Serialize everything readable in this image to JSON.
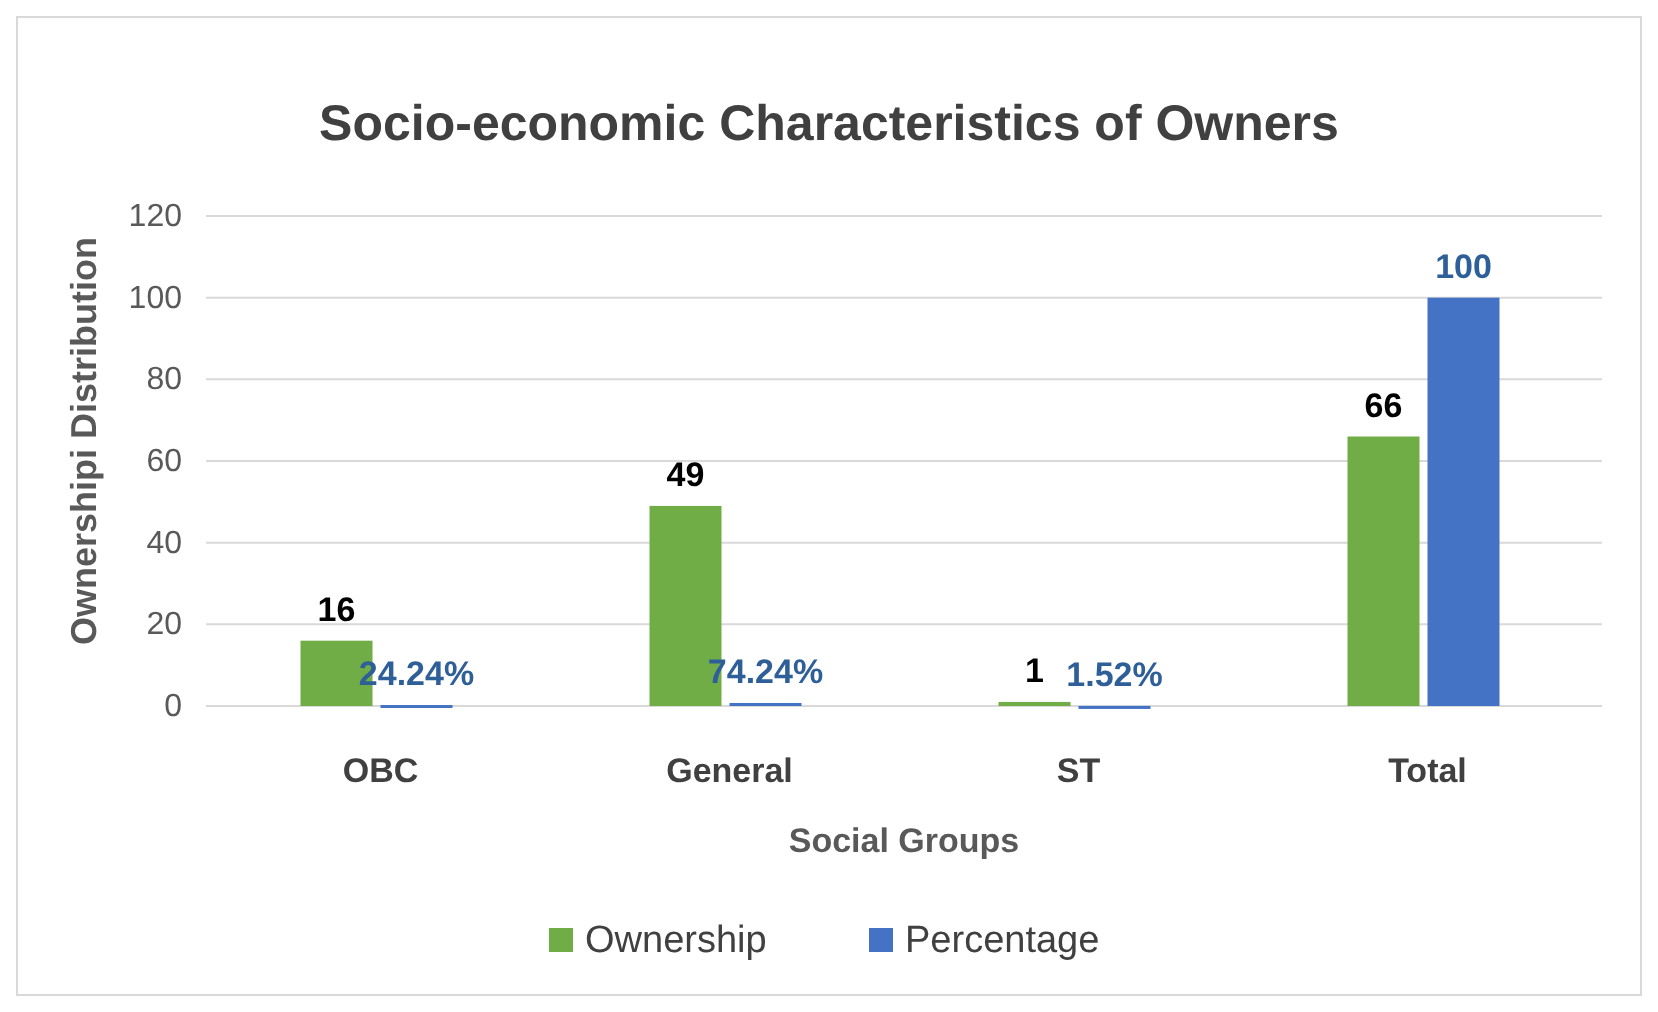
{
  "chart_data": {
    "type": "bar",
    "title": "Socio-economic Characteristics of Owners",
    "xlabel": "Social Groups",
    "ylabel": "Ownershipi Distribution",
    "categories": [
      "OBC",
      "General",
      "ST",
      "Total"
    ],
    "ylim": [
      0,
      120
    ],
    "yticks": [
      0,
      20,
      40,
      60,
      80,
      100,
      120
    ],
    "grid": "y",
    "legend": "bottom",
    "series": [
      {
        "name": "Ownership",
        "color": "#70ad47",
        "values": [
          16,
          49,
          1,
          66
        ],
        "value_labels": [
          "16",
          "49",
          "1",
          "66"
        ]
      },
      {
        "name": "Percentage",
        "color": "#4472c4",
        "values": [
          0.2424,
          0.7424,
          0.0152,
          100
        ],
        "value_labels": [
          "24.24%",
          "74.24%",
          "1.52%",
          "100"
        ]
      }
    ]
  }
}
